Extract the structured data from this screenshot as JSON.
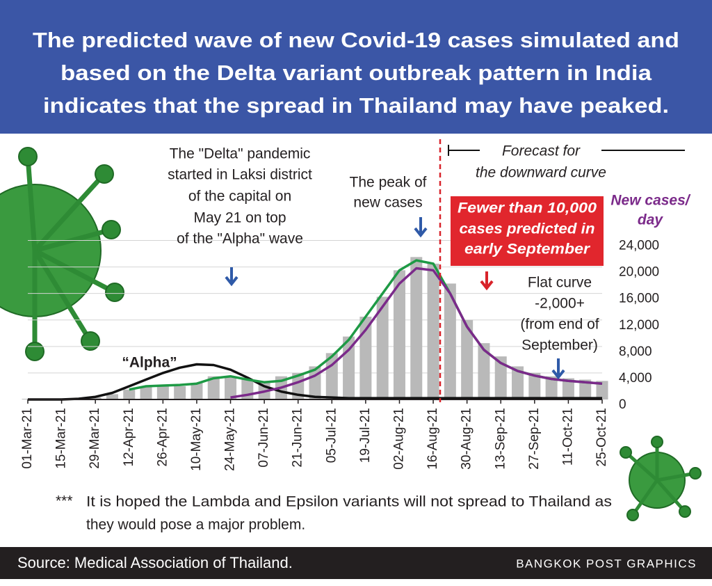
{
  "header": {
    "title": [
      "The predicted wave of new Covid-19 cases simulated and",
      "based on the Delta variant outbreak pattern in India",
      "indicates that the spread in Thailand may have peaked."
    ]
  },
  "chart_data": {
    "type": "combo",
    "categories": [
      "01-Mar-21",
      null,
      "15-Mar-21",
      null,
      "29-Mar-21",
      null,
      "12-Apr-21",
      null,
      "26-Apr-21",
      null,
      "10-May-21",
      null,
      "24-May-21",
      null,
      "07-Jun-21",
      null,
      "21-Jun-21",
      null,
      "05-Jul-21",
      null,
      "19-Jul-21",
      null,
      "02-Aug-21",
      null,
      "16-Aug-21",
      null,
      "30-Aug-21",
      null,
      "13-Sep-21",
      null,
      "27-Sep-21",
      null,
      "11-Oct-21",
      null,
      "25-Oct-21"
    ],
    "series": [
      {
        "type": "bar",
        "color": "#b9b9b9",
        "values": [
          100,
          100,
          100,
          150,
          300,
          800,
          1500,
          2000,
          2100,
          2000,
          2500,
          3500,
          3500,
          3000,
          2700,
          3500,
          4000,
          5000,
          7000,
          9500,
          12500,
          15500,
          19500,
          21500,
          20500,
          17500,
          12000,
          8500,
          6500,
          5000,
          4000,
          3500,
          3200,
          3000,
          2800
        ]
      },
      {
        "type": "line",
        "color": "#111111",
        "values": [
          0,
          0,
          0,
          100,
          400,
          1000,
          2000,
          3000,
          4000,
          4800,
          5300,
          5200,
          4500,
          3300,
          2000,
          1200,
          700,
          400,
          300,
          200,
          200,
          200,
          200,
          200,
          200,
          200,
          200,
          200,
          200,
          200,
          200,
          200,
          200,
          200,
          200
        ]
      },
      {
        "type": "line",
        "color": "#1e9a45",
        "values": [
          null,
          null,
          null,
          null,
          null,
          null,
          1500,
          2000,
          2100,
          2200,
          2400,
          3200,
          3500,
          3000,
          2600,
          2800,
          3600,
          4500,
          6500,
          9000,
          12500,
          16000,
          19500,
          21000,
          20500,
          16000,
          11000,
          7500,
          5500,
          4300,
          3600,
          3100,
          2800,
          2600,
          2400
        ]
      },
      {
        "type": "line",
        "color": "#7b2a8a",
        "values": [
          null,
          null,
          null,
          null,
          null,
          null,
          null,
          null,
          null,
          null,
          null,
          null,
          300,
          700,
          1200,
          1800,
          2600,
          3600,
          5200,
          7500,
          10500,
          14000,
          17500,
          19800,
          19500,
          16000,
          11000,
          7500,
          5500,
          4300,
          3600,
          3100,
          2800,
          2600,
          2400
        ]
      }
    ],
    "ylim": [
      0,
      25000
    ],
    "yticks": [
      0,
      {
        "value": 4000,
        "label": "4,000"
      },
      {
        "value": 8000,
        "label": "8,000"
      },
      {
        "value": 12000,
        "label": "12,000"
      },
      {
        "value": 16000,
        "label": "16,000"
      },
      {
        "value": 20000,
        "label": "20,000"
      },
      {
        "value": 24000,
        "label": "24,000"
      }
    ],
    "grid": true,
    "y_label": [
      "New cases/",
      "day"
    ],
    "annotations": {
      "delta": [
        "The \"Delta\" pandemic",
        "started in Laksi district",
        "of the capital on",
        "May 21 on top",
        "of the \"Alpha\" wave"
      ],
      "peak": [
        "The peak of",
        "new cases"
      ],
      "forecast": [
        "Forecast for",
        "the downward curve"
      ],
      "fewer": [
        "Fewer than 10,000",
        "cases predicted in",
        "early September"
      ],
      "flat": [
        "Flat curve",
        "-2,000+",
        "(from end of",
        "September)"
      ],
      "alpha": "“Alpha”"
    }
  },
  "footnote": {
    "mark": "***",
    "text": [
      "It is hoped the Lambda and Epsilon variants will not spread to Thailand as",
      "they would pose a major problem."
    ]
  },
  "footer": {
    "source": "Source: Medical Association of Thailand.",
    "credit": "BANGKOK POST GRAPHICS"
  }
}
